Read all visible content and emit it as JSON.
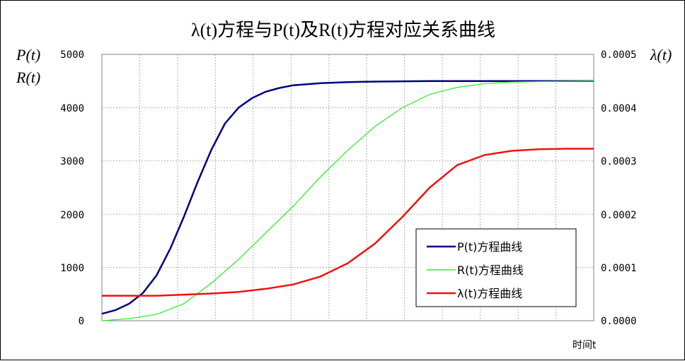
{
  "chart_data": {
    "type": "line",
    "title": "λ(t)方程与P(t)及R(t)方程对应关系曲线",
    "ylabel_left": [
      "P(t)",
      "R(t)"
    ],
    "ylabel_right": "λ(t)",
    "xlabel": "时间t",
    "y_left_ticks": [
      "5000",
      "4000",
      "3000",
      "2000",
      "1000",
      "0"
    ],
    "y_right_ticks": [
      "0.0005",
      "0.0004",
      "0.0003",
      "0.0002",
      "0.0001",
      "0.0000"
    ],
    "ylim_left": [
      0,
      5000
    ],
    "ylim_right": [
      0,
      0.0005
    ],
    "xlim": [
      0,
      18
    ],
    "x_tick_labels": false,
    "grid": true,
    "legend_placement": "lower-right",
    "series": [
      {
        "name": "P(t)方程曲线",
        "axis": "left",
        "color": "#000080",
        "x": [
          0,
          0.5,
          1,
          1.5,
          2,
          2.5,
          3,
          3.5,
          4,
          4.5,
          5,
          5.5,
          6,
          6.5,
          7,
          8,
          9,
          10,
          11,
          12,
          13,
          14,
          15,
          16,
          17,
          18
        ],
        "values": [
          130,
          200,
          320,
          520,
          850,
          1350,
          1950,
          2600,
          3200,
          3700,
          4000,
          4180,
          4300,
          4370,
          4420,
          4460,
          4480,
          4490,
          4495,
          4500,
          4500,
          4500,
          4500,
          4500,
          4500,
          4500
        ]
      },
      {
        "name": "R(t)方程曲线",
        "axis": "left",
        "color": "#33ee33",
        "x": [
          0,
          1,
          2,
          3,
          4,
          5,
          6,
          7,
          8,
          9,
          10,
          11,
          12,
          13,
          14,
          15,
          16,
          17,
          18
        ],
        "values": [
          0,
          40,
          120,
          320,
          700,
          1150,
          1650,
          2150,
          2700,
          3200,
          3650,
          4000,
          4250,
          4380,
          4450,
          4480,
          4490,
          4495,
          4500
        ]
      },
      {
        "name": "λ(t)方程曲线",
        "axis": "right",
        "color": "#ee1111",
        "x": [
          0,
          1,
          2,
          3,
          4,
          5,
          6,
          7,
          8,
          9,
          10,
          11,
          12,
          13,
          14,
          15,
          16,
          17,
          18
        ],
        "values": [
          4.7e-05,
          4.7e-05,
          4.7e-05,
          4.9e-05,
          5.1e-05,
          5.4e-05,
          6e-05,
          6.8e-05,
          8.3e-05,
          0.000108,
          0.000145,
          0.000195,
          0.00025,
          0.000292,
          0.000311,
          0.000319,
          0.000322,
          0.000323,
          0.000323
        ]
      }
    ]
  }
}
